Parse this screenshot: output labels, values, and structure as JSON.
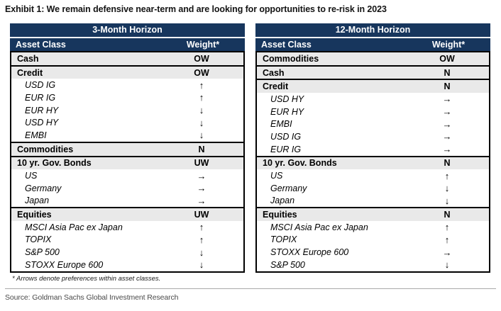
{
  "exhibit_title": "Exhibit 1: We remain defensive near-term and are looking for opportunities to re-risk in 2023",
  "source_line": "Source: Goldman Sachs Global Investment Research",
  "colors": {
    "header_navy": "#17365d",
    "category_row_bg": "#e9e9e9",
    "border_black": "#000000",
    "source_text_gray": "#4a4a4a"
  },
  "chart_data": [
    {
      "type": "table",
      "title": "3-Month Horizon",
      "columns": [
        "Asset Class",
        "Weight*"
      ],
      "footnote": "* Arrows denote preferences within asset classes.",
      "sections": [
        {
          "rows": [
            {
              "type": "category",
              "label": "Cash",
              "weight": "OW"
            }
          ]
        },
        {
          "rows": [
            {
              "type": "category",
              "label": "Credit",
              "weight": "OW"
            },
            {
              "type": "sub",
              "label": "USD IG",
              "weight": "↑"
            },
            {
              "type": "sub",
              "label": "EUR IG",
              "weight": "↑"
            },
            {
              "type": "sub",
              "label": "EUR HY",
              "weight": "↓"
            },
            {
              "type": "sub",
              "label": "USD HY",
              "weight": "↓"
            },
            {
              "type": "sub",
              "label": "EMBI",
              "weight": "↓"
            }
          ]
        },
        {
          "rows": [
            {
              "type": "category",
              "label": "Commodities",
              "weight": "N"
            }
          ]
        },
        {
          "rows": [
            {
              "type": "category",
              "label": "10 yr. Gov. Bonds",
              "weight": "UW"
            },
            {
              "type": "sub",
              "label": "US",
              "weight": "→"
            },
            {
              "type": "sub",
              "label": "Germany",
              "weight": "→"
            },
            {
              "type": "sub",
              "label": "Japan",
              "weight": "→"
            }
          ]
        },
        {
          "rows": [
            {
              "type": "category",
              "label": "Equities",
              "weight": "UW"
            },
            {
              "type": "sub",
              "label": "MSCI Asia Pac ex Japan",
              "weight": "↑"
            },
            {
              "type": "sub",
              "label": "TOPIX",
              "weight": "↑"
            },
            {
              "type": "sub",
              "label": "S&P 500",
              "weight": "↓"
            },
            {
              "type": "sub",
              "label": "STOXX Europe 600",
              "weight": "↓"
            }
          ]
        }
      ]
    },
    {
      "type": "table",
      "title": "12-Month Horizon",
      "columns": [
        "Asset Class",
        "Weight*"
      ],
      "footnote": "",
      "sections": [
        {
          "rows": [
            {
              "type": "category",
              "label": "Commodities",
              "weight": "OW"
            }
          ]
        },
        {
          "rows": [
            {
              "type": "category",
              "label": "Cash",
              "weight": "N"
            }
          ]
        },
        {
          "rows": [
            {
              "type": "category",
              "label": "Credit",
              "weight": "N"
            },
            {
              "type": "sub",
              "label": "USD HY",
              "weight": "→"
            },
            {
              "type": "sub",
              "label": "EUR HY",
              "weight": "→"
            },
            {
              "type": "sub",
              "label": "EMBI",
              "weight": "→"
            },
            {
              "type": "sub",
              "label": "USD IG",
              "weight": "→"
            },
            {
              "type": "sub",
              "label": "EUR IG",
              "weight": "→"
            }
          ]
        },
        {
          "rows": [
            {
              "type": "category",
              "label": "10 yr. Gov. Bonds",
              "weight": "N"
            },
            {
              "type": "sub",
              "label": "US",
              "weight": "↑"
            },
            {
              "type": "sub",
              "label": "Germany",
              "weight": "↓"
            },
            {
              "type": "sub",
              "label": "Japan",
              "weight": "↓"
            }
          ]
        },
        {
          "rows": [
            {
              "type": "category",
              "label": "Equities",
              "weight": "N"
            },
            {
              "type": "sub",
              "label": "MSCI Asia Pac ex Japan",
              "weight": "↑"
            },
            {
              "type": "sub",
              "label": "TOPIX",
              "weight": "↑"
            },
            {
              "type": "sub",
              "label": "STOXX Europe 600",
              "weight": "→"
            },
            {
              "type": "sub",
              "label": "S&P 500",
              "weight": "↓"
            }
          ]
        }
      ]
    }
  ]
}
